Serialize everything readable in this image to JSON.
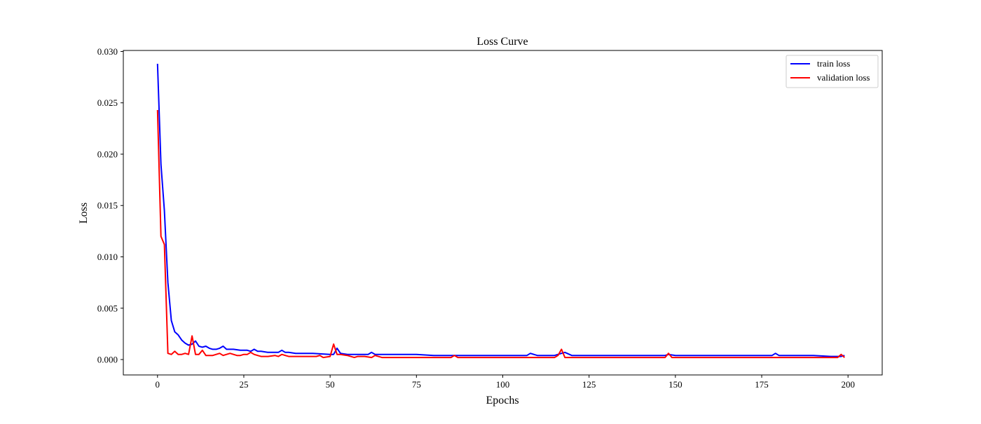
{
  "chart_data": {
    "type": "line",
    "title": "Loss Curve",
    "xlabel": "Epochs",
    "ylabel": "Loss",
    "xlim": [
      -9.9,
      209.9
    ],
    "ylim": [
      -0.0015,
      0.0301
    ],
    "x_ticks": [
      0,
      25,
      50,
      75,
      100,
      125,
      150,
      175,
      200
    ],
    "x_tick_labels": [
      "0",
      "25",
      "50",
      "75",
      "100",
      "125",
      "150",
      "175",
      "200"
    ],
    "y_ticks": [
      0.0,
      0.005,
      0.01,
      0.015,
      0.02,
      0.025,
      0.03
    ],
    "y_tick_labels": [
      "0.000",
      "0.005",
      "0.010",
      "0.015",
      "0.020",
      "0.025",
      "0.030"
    ],
    "grid": false,
    "legend_position": "upper right",
    "series": [
      {
        "name": "train loss",
        "color": "#0000ff",
        "x": [
          0,
          1,
          2,
          3,
          4,
          5,
          6,
          7,
          8,
          9,
          10,
          11,
          12,
          13,
          14,
          15,
          16,
          17,
          18,
          19,
          20,
          22,
          24,
          26,
          27,
          28,
          29,
          30,
          32,
          34,
          35,
          36,
          37,
          38,
          40,
          45,
          50,
          51,
          52,
          53,
          55,
          60,
          61,
          62,
          63,
          65,
          70,
          75,
          80,
          85,
          90,
          95,
          100,
          105,
          107,
          108,
          110,
          115,
          117,
          118,
          120,
          125,
          130,
          135,
          140,
          145,
          147,
          148,
          150,
          155,
          160,
          165,
          170,
          175,
          178,
          179,
          180,
          185,
          190,
          195,
          198,
          199
        ],
        "values": [
          0.0288,
          0.019,
          0.0145,
          0.0075,
          0.0038,
          0.0027,
          0.0024,
          0.0019,
          0.0016,
          0.0014,
          0.0015,
          0.0018,
          0.0013,
          0.0012,
          0.0013,
          0.0011,
          0.001,
          0.001,
          0.0011,
          0.0013,
          0.001,
          0.001,
          0.0009,
          0.0009,
          0.0008,
          0.001,
          0.0008,
          0.0008,
          0.0007,
          0.0007,
          0.0007,
          0.0009,
          0.0007,
          0.0007,
          0.0006,
          0.0006,
          0.0005,
          0.0005,
          0.0011,
          0.0006,
          0.0005,
          0.0005,
          0.0005,
          0.0007,
          0.0005,
          0.0005,
          0.0005,
          0.0005,
          0.0004,
          0.0004,
          0.0004,
          0.0004,
          0.0004,
          0.0004,
          0.0004,
          0.0006,
          0.0004,
          0.0004,
          0.0006,
          0.0007,
          0.0004,
          0.0004,
          0.0004,
          0.0004,
          0.0004,
          0.0004,
          0.0004,
          0.0005,
          0.0004,
          0.0004,
          0.0004,
          0.0004,
          0.0004,
          0.0004,
          0.0004,
          0.0006,
          0.0004,
          0.0004,
          0.0004,
          0.0003,
          0.0003,
          0.0004
        ]
      },
      {
        "name": "validation loss",
        "color": "#ff0000",
        "x": [
          0,
          1,
          2,
          3,
          4,
          5,
          6,
          7,
          8,
          9,
          10,
          11,
          12,
          13,
          14,
          15,
          16,
          17,
          18,
          19,
          20,
          21,
          22,
          23,
          24,
          25,
          26,
          27,
          28,
          29,
          30,
          32,
          34,
          35,
          36,
          37,
          38,
          40,
          45,
          46,
          47,
          48,
          50,
          51,
          52,
          53,
          55,
          57,
          58,
          60,
          62,
          63,
          65,
          70,
          75,
          80,
          85,
          86,
          87,
          88,
          90,
          95,
          100,
          105,
          110,
          112,
          115,
          116,
          117,
          118,
          120,
          125,
          130,
          135,
          140,
          145,
          147,
          148,
          149,
          150,
          155,
          160,
          165,
          170,
          175,
          178,
          180,
          185,
          190,
          195,
          197,
          198,
          199
        ],
        "values": [
          0.0243,
          0.012,
          0.0112,
          0.0006,
          0.0005,
          0.0008,
          0.0005,
          0.0005,
          0.0006,
          0.0005,
          0.0023,
          0.0005,
          0.0005,
          0.0009,
          0.0004,
          0.0004,
          0.0004,
          0.0005,
          0.0006,
          0.0004,
          0.0005,
          0.0006,
          0.0005,
          0.0004,
          0.0004,
          0.0005,
          0.0005,
          0.0007,
          0.0005,
          0.0004,
          0.0003,
          0.0003,
          0.0004,
          0.0003,
          0.0005,
          0.0004,
          0.0003,
          0.0003,
          0.0003,
          0.0003,
          0.0004,
          0.0002,
          0.0003,
          0.0015,
          0.0005,
          0.0005,
          0.0004,
          0.0002,
          0.0003,
          0.0003,
          0.0002,
          0.0004,
          0.0002,
          0.0002,
          0.0002,
          0.0002,
          0.0002,
          0.0004,
          0.0002,
          0.0002,
          0.0002,
          0.0002,
          0.0002,
          0.0002,
          0.0002,
          0.0002,
          0.0002,
          0.0004,
          0.001,
          0.0002,
          0.0002,
          0.0002,
          0.0002,
          0.0002,
          0.0002,
          0.0002,
          0.0002,
          0.0006,
          0.0002,
          0.0002,
          0.0002,
          0.0002,
          0.0002,
          0.0002,
          0.0002,
          0.0002,
          0.0002,
          0.0002,
          0.0002,
          0.0002,
          0.0002,
          0.0005,
          0.0002
        ]
      }
    ]
  }
}
